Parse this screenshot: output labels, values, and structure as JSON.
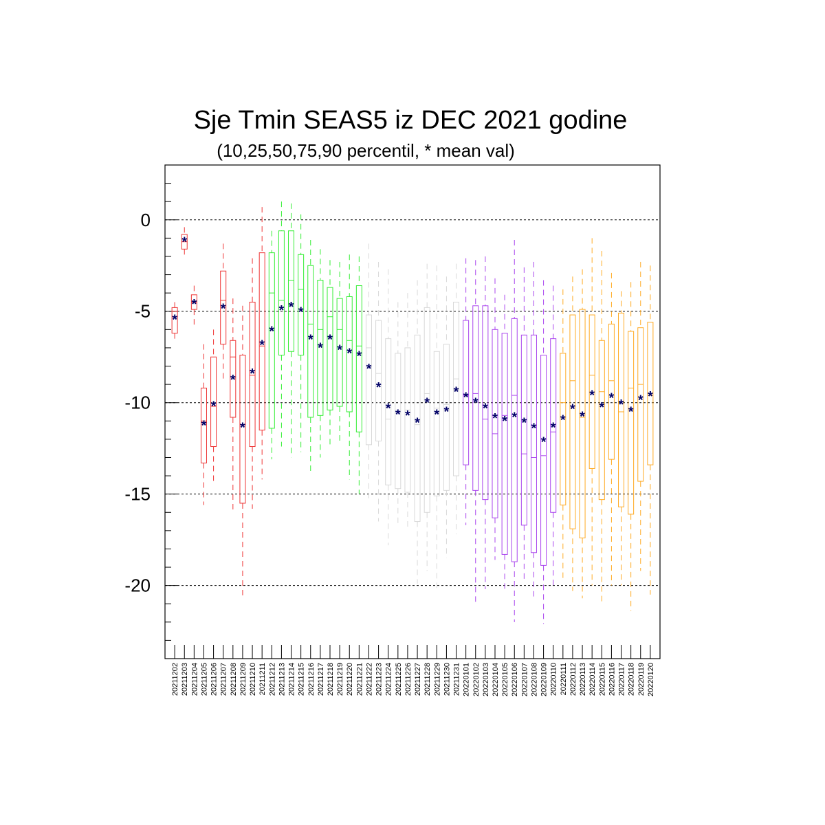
{
  "chart_data": {
    "type": "boxplot",
    "title": "Sje Tmin SEAS5 iz DEC 2021 godine",
    "subtitle": "(10,25,50,75,90 percentil, * mean val)",
    "ylim": [
      -24,
      3
    ],
    "yticks": [
      0,
      -5,
      -10,
      -15,
      -20
    ],
    "ytick_labels": [
      "0",
      "-5",
      "-10",
      "-15",
      "-20"
    ],
    "reference_lines": [
      0,
      -5,
      -10,
      -15,
      -20
    ],
    "mean_marker": "*",
    "colors": {
      "dec_early": "#ee3333",
      "dec_mid": "#33ee33",
      "dec_late": "#d8d8d8",
      "jan_early": "#aa44ee",
      "jan_mid": "#ffaa22",
      "mean": "#000066"
    },
    "boxes": [
      {
        "date": "20211202",
        "color": "dec_early",
        "p10": -6.6,
        "p25": -6.2,
        "p50": -5.0,
        "p75": -4.8,
        "p90": -4.5,
        "mean": -5.4
      },
      {
        "date": "20211203",
        "color": "dec_early",
        "p10": -1.9,
        "p25": -1.6,
        "p50": -1.2,
        "p75": -0.8,
        "p90": -0.4,
        "mean": -1.15
      },
      {
        "date": "20211204",
        "color": "dec_early",
        "p10": -5.9,
        "p25": -4.9,
        "p50": -4.5,
        "p75": -4.1,
        "p90": -3.6,
        "mean": -4.55
      },
      {
        "date": "20211205",
        "color": "dec_early",
        "p10": -15.6,
        "p25": -13.3,
        "p50": -11.0,
        "p75": -9.2,
        "p90": -6.8,
        "mean": -11.2
      },
      {
        "date": "20211206",
        "color": "dec_early",
        "p10": -14.3,
        "p25": -12.4,
        "p50": -10.2,
        "p75": -7.5,
        "p90": -6.0,
        "mean": -10.15
      },
      {
        "date": "20211207",
        "color": "dec_early",
        "p10": -8.7,
        "p25": -6.8,
        "p50": -4.4,
        "p75": -2.8,
        "p90": -1.3,
        "mean": -4.8
      },
      {
        "date": "20211208",
        "color": "dec_early",
        "p10": -16.0,
        "p25": -10.8,
        "p50": -7.5,
        "p75": -6.6,
        "p90": -4.3,
        "mean": -8.7
      },
      {
        "date": "20211209",
        "color": "dec_early",
        "p10": -20.6,
        "p25": -15.5,
        "p50": -11.2,
        "p75": -7.4,
        "p90": -4.7,
        "mean": -11.3
      },
      {
        "date": "20211210",
        "color": "dec_early",
        "p10": -15.8,
        "p25": -12.4,
        "p50": -8.5,
        "p75": -4.5,
        "p90": -2.1,
        "mean": -8.35
      },
      {
        "date": "20211211",
        "color": "dec_early",
        "p10": -14.2,
        "p25": -11.5,
        "p50": -6.9,
        "p75": -1.8,
        "p90": 0.7,
        "mean": -6.8
      },
      {
        "date": "20211212",
        "color": "dec_mid",
        "p10": -13.1,
        "p25": -11.4,
        "p50": -4.0,
        "p75": -1.8,
        "p90": -0.6,
        "mean": -6.05
      },
      {
        "date": "20211213",
        "color": "dec_mid",
        "p10": -12.4,
        "p25": -7.4,
        "p50": -4.4,
        "p75": -0.6,
        "p90": 1.0,
        "mean": -4.9
      },
      {
        "date": "20211214",
        "color": "dec_mid",
        "p10": -13.0,
        "p25": -7.2,
        "p50": -3.3,
        "p75": -0.6,
        "p90": 0.9,
        "mean": -4.7
      },
      {
        "date": "20211215",
        "color": "dec_mid",
        "p10": -12.7,
        "p25": -7.4,
        "p50": -3.8,
        "p75": -1.9,
        "p90": 0.3,
        "mean": -5.0
      },
      {
        "date": "20211216",
        "color": "dec_mid",
        "p10": -13.8,
        "p25": -10.8,
        "p50": -5.7,
        "p75": -2.5,
        "p90": -1.1,
        "mean": -6.5
      },
      {
        "date": "20211217",
        "color": "dec_mid",
        "p10": -13.0,
        "p25": -10.7,
        "p50": -6.0,
        "p75": -3.3,
        "p90": -1.6,
        "mean": -6.95
      },
      {
        "date": "20211218",
        "color": "dec_mid",
        "p10": -12.4,
        "p25": -10.4,
        "p50": -5.3,
        "p75": -3.7,
        "p90": -2.2,
        "mean": -6.5
      },
      {
        "date": "20211219",
        "color": "dec_mid",
        "p10": -12.3,
        "p25": -10.2,
        "p50": -6.0,
        "p75": -4.3,
        "p90": -2.3,
        "mean": -7.05
      },
      {
        "date": "20211220",
        "color": "dec_mid",
        "p10": -14.2,
        "p25": -10.5,
        "p50": -6.6,
        "p75": -4.2,
        "p90": -1.9,
        "mean": -7.25
      },
      {
        "date": "20211221",
        "color": "dec_mid",
        "p10": -15.0,
        "p25": -11.6,
        "p50": -6.9,
        "p75": -3.6,
        "p90": -2.0,
        "mean": -7.4
      },
      {
        "date": "20211222",
        "color": "dec_late",
        "p10": -15.3,
        "p25": -12.3,
        "p50": -7.0,
        "p75": -5.2,
        "p90": -1.3,
        "mean": -8.1
      },
      {
        "date": "20211223",
        "color": "dec_late",
        "p10": -16.5,
        "p25": -12.1,
        "p50": -8.4,
        "p75": -5.5,
        "p90": -2.3,
        "mean": -9.1
      },
      {
        "date": "20211224",
        "color": "dec_late",
        "p10": -17.8,
        "p25": -14.5,
        "p50": -10.9,
        "p75": -6.5,
        "p90": -2.7,
        "mean": -10.25
      },
      {
        "date": "20211225",
        "color": "dec_late",
        "p10": -16.8,
        "p25": -14.7,
        "p50": -10.5,
        "p75": -7.3,
        "p90": -4.5,
        "mean": -10.6
      },
      {
        "date": "20211226",
        "color": "dec_late",
        "p10": -16.8,
        "p25": -14.9,
        "p50": -10.4,
        "p75": -7.0,
        "p90": -4.0,
        "mean": -10.65
      },
      {
        "date": "20211227",
        "color": "dec_late",
        "p10": -19.9,
        "p25": -16.5,
        "p50": -11.2,
        "p75": -6.3,
        "p90": -3.3,
        "mean": -11.05
      },
      {
        "date": "20211228",
        "color": "dec_late",
        "p10": -19.2,
        "p25": -16.0,
        "p50": -9.5,
        "p75": -4.8,
        "p90": -2.4,
        "mean": -9.95
      },
      {
        "date": "20211229",
        "color": "dec_late",
        "p10": -20.3,
        "p25": -15.1,
        "p50": -10.3,
        "p75": -7.2,
        "p90": -2.5,
        "mean": -10.6
      },
      {
        "date": "20211230",
        "color": "dec_late",
        "p10": -18.5,
        "p25": -14.8,
        "p50": -10.1,
        "p75": -6.8,
        "p90": -3.1,
        "mean": -10.45
      },
      {
        "date": "20211231",
        "color": "dec_late",
        "p10": -17.2,
        "p25": -14.0,
        "p50": -8.7,
        "p75": -4.5,
        "p90": -2.4,
        "mean": -9.35
      },
      {
        "date": "20220101",
        "color": "jan_early",
        "p10": -16.7,
        "p25": -13.4,
        "p50": -9.6,
        "p75": -5.5,
        "p90": -2.1,
        "mean": -9.65
      },
      {
        "date": "20220102",
        "color": "jan_early",
        "p10": -21.1,
        "p25": -14.8,
        "p50": -9.5,
        "p75": -4.7,
        "p90": -2.2,
        "mean": -9.95
      },
      {
        "date": "20220103",
        "color": "jan_early",
        "p10": -20.2,
        "p25": -15.3,
        "p50": -10.9,
        "p75": -4.7,
        "p90": -2.0,
        "mean": -10.25
      },
      {
        "date": "20220104",
        "color": "jan_early",
        "p10": -18.6,
        "p25": -16.3,
        "p50": -11.7,
        "p75": -6.0,
        "p90": -3.2,
        "mean": -10.8
      },
      {
        "date": "20220105",
        "color": "jan_early",
        "p10": -20.2,
        "p25": -18.3,
        "p50": -10.7,
        "p75": -6.2,
        "p90": -4.1,
        "mean": -10.95
      },
      {
        "date": "20220106",
        "color": "jan_early",
        "p10": -22.0,
        "p25": -18.7,
        "p50": -9.6,
        "p75": -5.4,
        "p90": -1.1,
        "mean": -10.75
      },
      {
        "date": "20220107",
        "color": "jan_early",
        "p10": -19.7,
        "p25": -16.7,
        "p50": -12.8,
        "p75": -6.3,
        "p90": -2.6,
        "mean": -11.05
      },
      {
        "date": "20220108",
        "color": "jan_early",
        "p10": -20.6,
        "p25": -18.2,
        "p50": -13.0,
        "p75": -6.3,
        "p90": -2.3,
        "mean": -11.35
      },
      {
        "date": "20220109",
        "color": "jan_early",
        "p10": -22.1,
        "p25": -18.9,
        "p50": -12.9,
        "p75": -7.4,
        "p90": -3.3,
        "mean": -12.1
      },
      {
        "date": "20220110",
        "color": "jan_early",
        "p10": -20.0,
        "p25": -16.0,
        "p50": -11.6,
        "p75": -6.5,
        "p90": -3.6,
        "mean": -11.3
      },
      {
        "date": "20220111",
        "color": "jan_mid",
        "p10": -19.6,
        "p25": -15.6,
        "p50": -10.0,
        "p75": -7.3,
        "p90": -3.8,
        "mean": -10.9
      },
      {
        "date": "20220112",
        "color": "jan_mid",
        "p10": -20.3,
        "p25": -16.9,
        "p50": -8.8,
        "p75": -5.2,
        "p90": -3.1,
        "mean": -10.3
      },
      {
        "date": "20220113",
        "color": "jan_mid",
        "p10": -20.7,
        "p25": -17.4,
        "p50": -10.8,
        "p75": -4.9,
        "p90": -2.7,
        "mean": -10.7
      },
      {
        "date": "20220114",
        "color": "jan_mid",
        "p10": -20.0,
        "p25": -13.6,
        "p50": -8.5,
        "p75": -5.2,
        "p90": -1.0,
        "mean": -9.55
      },
      {
        "date": "20220115",
        "color": "jan_mid",
        "p10": -21.0,
        "p25": -15.3,
        "p50": -9.4,
        "p75": -6.6,
        "p90": -1.7,
        "mean": -10.2
      },
      {
        "date": "20220116",
        "color": "jan_mid",
        "p10": -20.0,
        "p25": -13.1,
        "p50": -8.8,
        "p75": -5.7,
        "p90": -2.9,
        "mean": -9.7
      },
      {
        "date": "20220117",
        "color": "jan_mid",
        "p10": -20.0,
        "p25": -15.7,
        "p50": -10.5,
        "p75": -5.1,
        "p90": -3.9,
        "mean": -10.05
      },
      {
        "date": "20220118",
        "color": "jan_mid",
        "p10": -21.4,
        "p25": -16.1,
        "p50": -9.2,
        "p75": -6.1,
        "p90": -3.4,
        "mean": -10.45
      },
      {
        "date": "20220119",
        "color": "jan_mid",
        "p10": -19.2,
        "p25": -14.3,
        "p50": -9.0,
        "p75": -5.9,
        "p90": -2.3,
        "mean": -9.8
      },
      {
        "date": "20220120",
        "color": "jan_mid",
        "p10": -20.5,
        "p25": -13.4,
        "p50": -9.6,
        "p75": -5.6,
        "p90": -2.5,
        "mean": -9.6
      }
    ]
  }
}
